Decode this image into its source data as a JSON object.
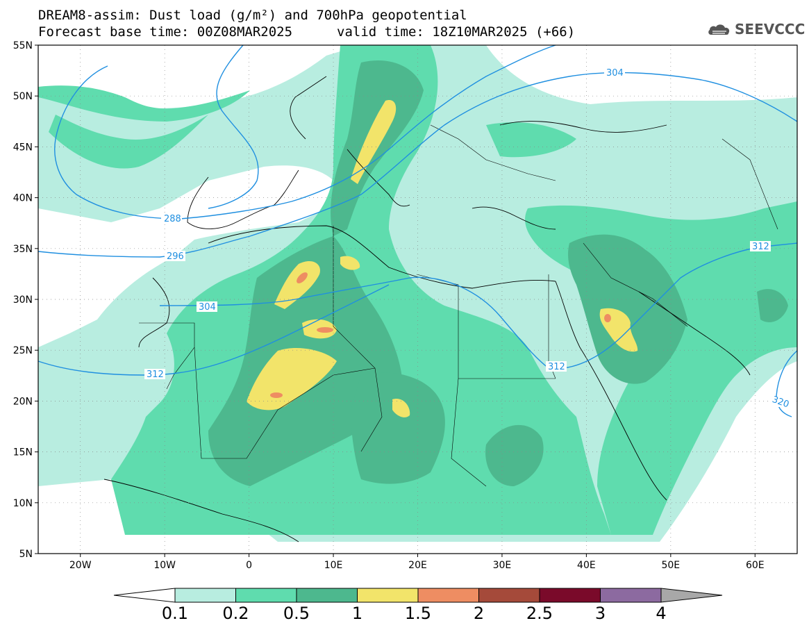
{
  "header": {
    "title_line1": "DREAM8-assim: Dust load (g/m²) and 700hPa geopotential",
    "title_line2": "Forecast base time: 00Z08MAR2025",
    "valid_time": "valid time: 18Z10MAR2025 (+66)",
    "logo_text": "SEEVCCC",
    "logo_icon": "cloud-logo-icon"
  },
  "map": {
    "lon_range": [
      -25,
      65
    ],
    "lat_range": [
      5,
      55
    ],
    "lat_labels": [
      "55N",
      "50N",
      "45N",
      "40N",
      "35N",
      "30N",
      "25N",
      "20N",
      "15N",
      "10N",
      "5N"
    ],
    "lon_labels": [
      "20W",
      "10W",
      "0",
      "10E",
      "20E",
      "30E",
      "40E",
      "50E",
      "60E"
    ],
    "contour_labels": [
      "304",
      "288",
      "296",
      "304",
      "312",
      "312",
      "312",
      "320"
    ]
  },
  "colorbar": {
    "labels": [
      "0.1",
      "0.2",
      "0.5",
      "1",
      "1.5",
      "2",
      "2.5",
      "3",
      "4"
    ],
    "colors": [
      "#ffffff",
      "#b8ede0",
      "#5fdcae",
      "#4db88e",
      "#f2e46a",
      "#ee8d62",
      "#a54a3a",
      "#7a0a2a",
      "#8c6aa0",
      "#a8a8a8"
    ]
  },
  "colors": {
    "level1": "#b8ede0",
    "level2": "#5fdcae",
    "level3": "#4db88e",
    "level4": "#f2e46a",
    "level5": "#ee8d62",
    "level6": "#c0584a",
    "contour": "#1f8fe0"
  }
}
